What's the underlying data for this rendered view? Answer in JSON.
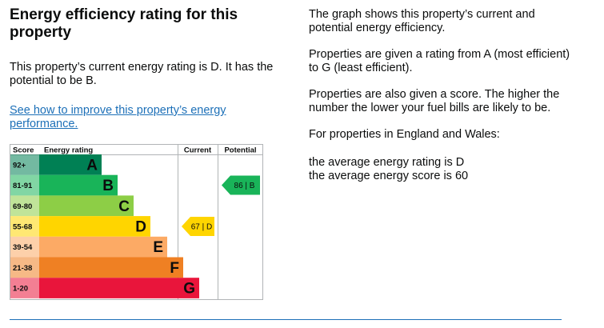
{
  "left": {
    "title": "Energy efficiency rating for this property",
    "summary": "This property’s current energy rating is D. It has the potential to be B.",
    "improve_link": "See how to improve this property’s energy performance."
  },
  "right": {
    "p1": "The graph shows this property’s current and potential energy efficiency.",
    "p2": "Properties are given a rating from A (most efficient) to G (least efficient).",
    "p3": "Properties are also given a score. The higher the number the lower your fuel bills are likely to be.",
    "p4": "For properties in England and Wales:",
    "p5a": "the average energy rating is D",
    "p5b": "the average energy score is 60"
  },
  "chart_data": {
    "type": "bar",
    "headers": {
      "score": "Score",
      "rating": "Energy rating",
      "current": "Current",
      "potential": "Potential"
    },
    "bands": [
      {
        "letter": "A",
        "range": "92+",
        "color": "#008054"
      },
      {
        "letter": "B",
        "range": "81-91",
        "color": "#19b459"
      },
      {
        "letter": "C",
        "range": "69-80",
        "color": "#8dce46"
      },
      {
        "letter": "D",
        "range": "55-68",
        "color": "#ffd500"
      },
      {
        "letter": "E",
        "range": "39-54",
        "color": "#fcaa65"
      },
      {
        "letter": "F",
        "range": "21-38",
        "color": "#ef8023"
      },
      {
        "letter": "G",
        "range": "1-20",
        "color": "#e9153b"
      }
    ],
    "current": {
      "score": 67,
      "letter": "D",
      "label": "67 | D"
    },
    "potential": {
      "score": 86,
      "letter": "B",
      "label": "86 | B"
    }
  }
}
